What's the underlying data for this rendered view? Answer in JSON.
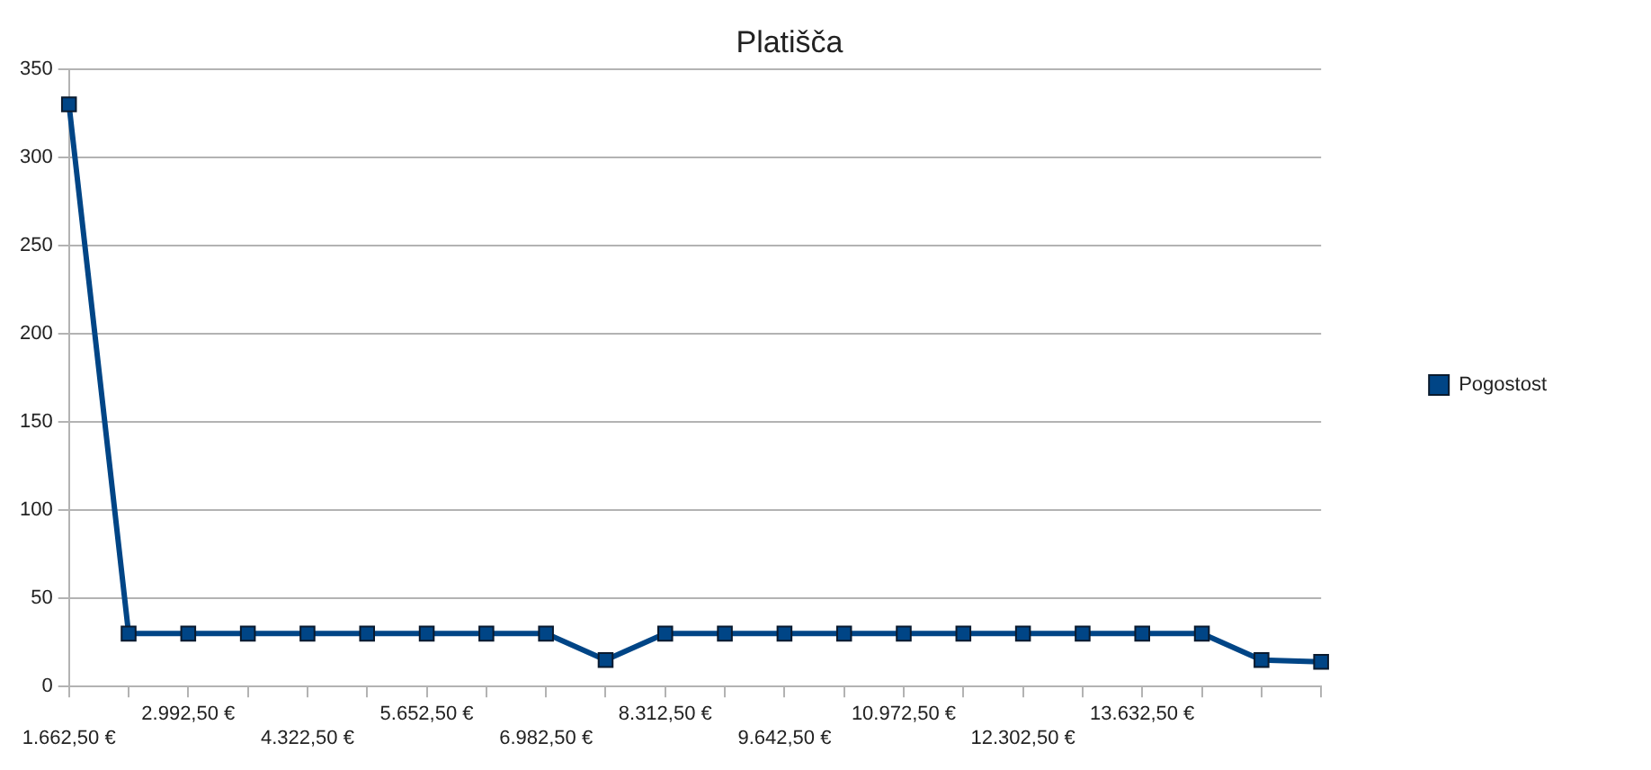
{
  "chart_data": {
    "type": "line",
    "title": "Platišča",
    "categories": [
      "1.662,50 €",
      null,
      "2.992,50 €",
      null,
      "4.322,50 €",
      null,
      "5.652,50 €",
      null,
      "6.982,50 €",
      null,
      "8.312,50 €",
      null,
      "9.642,50 €",
      null,
      "10.972,50 €",
      null,
      "12.302,50 €",
      null,
      "13.632,50 €",
      null,
      null,
      null
    ],
    "series": [
      {
        "name": "Pogostost",
        "color": "#004586",
        "values": [
          330,
          30,
          30,
          30,
          30,
          30,
          30,
          30,
          30,
          15,
          30,
          30,
          30,
          30,
          30,
          30,
          30,
          30,
          30,
          30,
          15,
          14
        ]
      }
    ],
    "ylim": [
      0,
      350
    ],
    "yticks": [
      0,
      50,
      100,
      150,
      200,
      250,
      300,
      350
    ],
    "grid": "y",
    "legend": "right",
    "marker": "square",
    "line_style": "solid"
  }
}
